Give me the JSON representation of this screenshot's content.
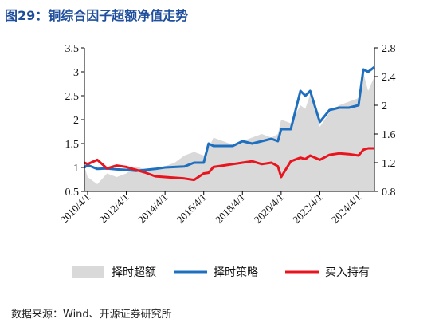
{
  "header": {
    "title": "图29：铜综合因子超额净值走势"
  },
  "footer": {
    "source": "数据来源：Wind、开源证券研究所"
  },
  "chart_data": {
    "type": "line",
    "x_tick_labels": [
      "2010/4/1",
      "2012/4/1",
      "2014/4/1",
      "2016/4/1",
      "2018/4/1",
      "2020/4/1",
      "2022/4/1",
      "2024/4/1"
    ],
    "left_axis": {
      "ylim": [
        0.5,
        3.5
      ],
      "ticks": [
        "0.5",
        "1",
        "1.5",
        "2",
        "2.5",
        "3",
        "3.5"
      ]
    },
    "right_axis": {
      "ylim": [
        0.8,
        2.8
      ],
      "ticks": [
        "0.8",
        "1.2",
        "1.6",
        "2",
        "2.4",
        "2.8"
      ]
    },
    "grid": false,
    "legend_position": "bottom",
    "x": [
      "2009-12",
      "2010-04",
      "2010-10",
      "2011-04",
      "2011-10",
      "2012-04",
      "2012-10",
      "2013-04",
      "2013-10",
      "2014-04",
      "2014-10",
      "2015-04",
      "2015-10",
      "2016-04",
      "2016-07",
      "2016-10",
      "2017-04",
      "2017-10",
      "2018-04",
      "2018-10",
      "2019-04",
      "2019-10",
      "2020-02",
      "2020-04",
      "2020-10",
      "2021-04",
      "2021-07",
      "2021-10",
      "2022-04",
      "2022-10",
      "2023-04",
      "2023-10",
      "2024-04",
      "2024-07",
      "2024-10",
      "2025-04"
    ],
    "series": [
      {
        "name": "择时超额",
        "axis": "right",
        "style": "area",
        "color": "#d9d9d9",
        "values": [
          1.15,
          1.0,
          0.9,
          1.05,
          1.0,
          1.05,
          1.15,
          1.1,
          1.12,
          1.15,
          1.2,
          1.3,
          1.35,
          1.3,
          1.4,
          1.55,
          1.5,
          1.45,
          1.5,
          1.55,
          1.6,
          1.55,
          1.6,
          1.8,
          1.75,
          2.0,
          1.95,
          2.15,
          1.7,
          1.9,
          2.0,
          2.05,
          2.1,
          2.45,
          2.2,
          2.4
        ]
      },
      {
        "name": "择时策略",
        "axis": "left",
        "style": "line",
        "color": "#1f6fbf",
        "values": [
          1.0,
          1.05,
          0.97,
          0.98,
          0.96,
          0.95,
          0.93,
          0.95,
          0.97,
          1.0,
          1.01,
          1.02,
          1.1,
          1.1,
          1.5,
          1.45,
          1.45,
          1.45,
          1.55,
          1.5,
          1.55,
          1.6,
          1.55,
          1.8,
          1.8,
          2.6,
          2.5,
          2.6,
          1.95,
          2.2,
          2.25,
          2.25,
          2.3,
          3.05,
          3.0,
          3.1
        ]
      },
      {
        "name": "买入持有",
        "axis": "right",
        "style": "line",
        "color": "#e8141e",
        "values": [
          1.2,
          1.18,
          1.24,
          1.12,
          1.16,
          1.14,
          1.1,
          1.06,
          1.01,
          1.0,
          0.99,
          0.98,
          0.96,
          1.05,
          1.06,
          1.14,
          1.16,
          1.18,
          1.2,
          1.22,
          1.18,
          1.2,
          1.15,
          1.0,
          1.22,
          1.27,
          1.25,
          1.3,
          1.24,
          1.31,
          1.33,
          1.32,
          1.3,
          1.38,
          1.4,
          1.4
        ]
      }
    ]
  }
}
